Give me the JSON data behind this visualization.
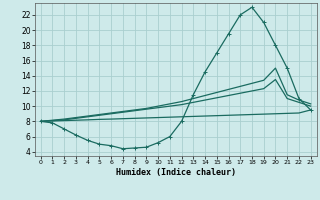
{
  "xlabel": "Humidex (Indice chaleur)",
  "bg_color": "#ceeaea",
  "grid_color": "#aacfcf",
  "line_color": "#1a6b60",
  "xlim": [
    -0.5,
    23.5
  ],
  "ylim": [
    3.5,
    23.5
  ],
  "yticks": [
    4,
    6,
    8,
    10,
    12,
    14,
    16,
    18,
    20,
    22
  ],
  "xticks": [
    0,
    1,
    2,
    3,
    4,
    5,
    6,
    7,
    8,
    9,
    10,
    11,
    12,
    13,
    14,
    15,
    16,
    17,
    18,
    19,
    20,
    21,
    22,
    23
  ],
  "curve_x": [
    0,
    1,
    2,
    3,
    4,
    5,
    6,
    7,
    8,
    9,
    10,
    11,
    12,
    13,
    14,
    15,
    16,
    17,
    18,
    19,
    20,
    21,
    22,
    23
  ],
  "curve_y": [
    8.0,
    7.8,
    7.0,
    6.2,
    5.5,
    5.0,
    4.8,
    4.4,
    4.5,
    4.6,
    5.2,
    6.0,
    8.0,
    11.5,
    14.5,
    17.0,
    19.5,
    22.0,
    23.0,
    21.0,
    18.0,
    15.0,
    11.0,
    9.5
  ],
  "line_lo_x": [
    0,
    1,
    2,
    3,
    4,
    5,
    6,
    7,
    8,
    9,
    10,
    11,
    12,
    13,
    14,
    15,
    16,
    17,
    18,
    19,
    20,
    21,
    22,
    23
  ],
  "line_lo_y": [
    8.0,
    8.05,
    8.1,
    8.15,
    8.2,
    8.26,
    8.3,
    8.35,
    8.4,
    8.45,
    8.5,
    8.55,
    8.6,
    8.65,
    8.7,
    8.75,
    8.8,
    8.85,
    8.9,
    8.95,
    9.0,
    9.05,
    9.1,
    9.5
  ],
  "line_mid_x": [
    0,
    1,
    2,
    3,
    4,
    5,
    6,
    7,
    8,
    9,
    10,
    11,
    12,
    13,
    14,
    15,
    16,
    17,
    18,
    19,
    20,
    21,
    22,
    23
  ],
  "line_mid_y": [
    8.0,
    8.1,
    8.2,
    8.4,
    8.6,
    8.8,
    9.0,
    9.2,
    9.4,
    9.6,
    9.8,
    10.0,
    10.2,
    10.5,
    10.8,
    11.1,
    11.4,
    11.7,
    12.0,
    12.3,
    13.5,
    11.0,
    10.5,
    10.0
  ],
  "line_hi_x": [
    0,
    1,
    2,
    3,
    4,
    5,
    6,
    7,
    8,
    9,
    10,
    11,
    12,
    13,
    14,
    15,
    16,
    17,
    18,
    19,
    20,
    21,
    22,
    23
  ],
  "line_hi_y": [
    8.0,
    8.15,
    8.3,
    8.5,
    8.7,
    8.9,
    9.1,
    9.3,
    9.5,
    9.7,
    10.0,
    10.3,
    10.6,
    11.0,
    11.4,
    11.8,
    12.2,
    12.6,
    13.0,
    13.4,
    15.0,
    11.5,
    10.8,
    10.3
  ]
}
